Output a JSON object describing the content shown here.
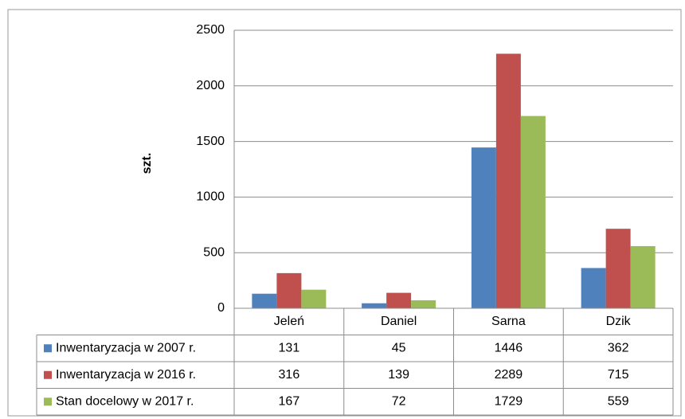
{
  "chart_data": {
    "type": "bar",
    "y_label": "szt.",
    "categories": [
      "Jeleń",
      "Daniel",
      "Sarna",
      "Dzik"
    ],
    "series": [
      {
        "name": "Inwentaryzacja w 2007 r.",
        "color": "#4f81bd",
        "values": [
          131,
          45,
          1446,
          362
        ]
      },
      {
        "name": "Inwentaryzacja w 2016 r.",
        "color": "#c0504d",
        "values": [
          316,
          139,
          2289,
          715
        ]
      },
      {
        "name": "Stan docelowy w 2017 r.",
        "color": "#9bbb59",
        "values": [
          167,
          72,
          1729,
          559
        ]
      }
    ],
    "ylim": [
      0,
      2500
    ],
    "yticks": [
      0,
      500,
      1000,
      1500,
      2000,
      2500
    ],
    "grid": true
  }
}
